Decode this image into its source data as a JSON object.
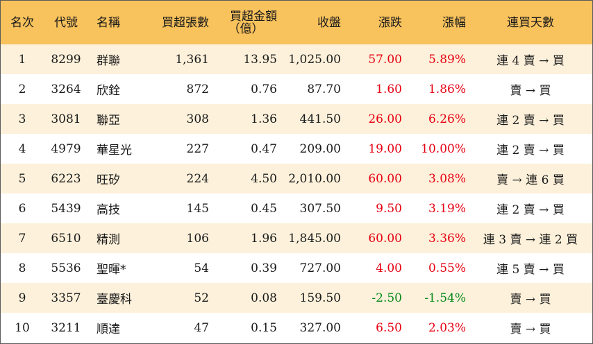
{
  "headers": {
    "rank": "名次",
    "code": "代號",
    "name": "名稱",
    "net_lots": "買超張數",
    "amount_line1": "買超金額",
    "amount_line2": "（億）",
    "close": "收盤",
    "change": "漲跌",
    "pct": "漲幅",
    "days": "連買天數"
  },
  "colors": {
    "header_bg": "#f8c25c",
    "odd_row_bg": "#fdf1db",
    "up": "#e60012",
    "down": "#0a8a1c"
  },
  "rows": [
    {
      "rank": "1",
      "code": "8299",
      "name": "群聯",
      "net_lots": "1,361",
      "amount": "13.95",
      "close": "1,025.00",
      "change": "57.00",
      "pct": "5.89%",
      "days": "連 4 賣 → 買",
      "dir": "up"
    },
    {
      "rank": "2",
      "code": "3264",
      "name": "欣銓",
      "net_lots": "872",
      "amount": "0.76",
      "close": "87.70",
      "change": "1.60",
      "pct": "1.86%",
      "days": "賣 → 買",
      "dir": "up"
    },
    {
      "rank": "3",
      "code": "3081",
      "name": "聯亞",
      "net_lots": "308",
      "amount": "1.36",
      "close": "441.50",
      "change": "26.00",
      "pct": "6.26%",
      "days": "連 2 賣 → 買",
      "dir": "up"
    },
    {
      "rank": "4",
      "code": "4979",
      "name": "華星光",
      "net_lots": "227",
      "amount": "0.47",
      "close": "209.00",
      "change": "19.00",
      "pct": "10.00%",
      "days": "連 2 賣 → 買",
      "dir": "up"
    },
    {
      "rank": "5",
      "code": "6223",
      "name": "旺矽",
      "net_lots": "224",
      "amount": "4.50",
      "close": "2,010.00",
      "change": "60.00",
      "pct": "3.08%",
      "days": "賣 → 連 6 買",
      "dir": "up"
    },
    {
      "rank": "6",
      "code": "5439",
      "name": "高技",
      "net_lots": "145",
      "amount": "0.45",
      "close": "307.50",
      "change": "9.50",
      "pct": "3.19%",
      "days": "連 2 賣 → 買",
      "dir": "up"
    },
    {
      "rank": "7",
      "code": "6510",
      "name": "精測",
      "net_lots": "106",
      "amount": "1.96",
      "close": "1,845.00",
      "change": "60.00",
      "pct": "3.36%",
      "days": "連 3 賣 → 連 2 買",
      "dir": "up"
    },
    {
      "rank": "8",
      "code": "5536",
      "name": "聖暉*",
      "net_lots": "54",
      "amount": "0.39",
      "close": "727.00",
      "change": "4.00",
      "pct": "0.55%",
      "days": "連 5 賣 → 買",
      "dir": "up"
    },
    {
      "rank": "9",
      "code": "3357",
      "name": "臺慶科",
      "net_lots": "52",
      "amount": "0.08",
      "close": "159.50",
      "change": "-2.50",
      "pct": "-1.54%",
      "days": "賣 → 買",
      "dir": "down"
    },
    {
      "rank": "10",
      "code": "3211",
      "name": "順達",
      "net_lots": "47",
      "amount": "0.15",
      "close": "327.00",
      "change": "6.50",
      "pct": "2.03%",
      "days": "賣 → 買",
      "dir": "up"
    }
  ]
}
